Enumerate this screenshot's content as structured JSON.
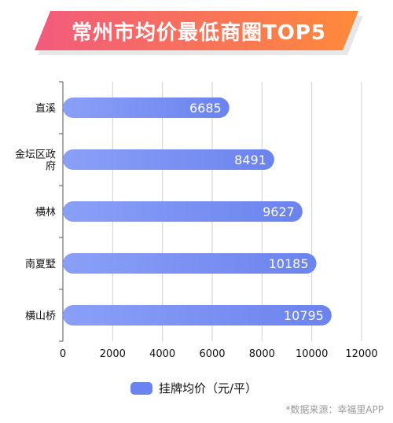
{
  "title": "常州市均价最低商圈TOP5",
  "colors": {
    "banner_left": "#f25a7b",
    "banner_right": "#ff8a3a",
    "banner_shadow": "#e7e7e7",
    "bar_left": "#8aa0f7",
    "bar_right": "#6b83ee",
    "grid": "#cfcfcf"
  },
  "chart_data": {
    "type": "bar",
    "orientation": "horizontal",
    "categories": [
      "直溪",
      "金坛区政府",
      "横林",
      "南夏墅",
      "横山桥"
    ],
    "category_display": [
      [
        "直溪"
      ],
      [
        "金坛区政",
        "府"
      ],
      [
        "横林"
      ],
      [
        "南夏墅"
      ],
      [
        "横山桥"
      ]
    ],
    "series": [
      {
        "name": "挂牌均价（元/平）",
        "values": [
          6685,
          8491,
          9627,
          10185,
          10795
        ]
      }
    ],
    "xlim": [
      0,
      12000
    ],
    "xticks": [
      0,
      2000,
      4000,
      6000,
      8000,
      10000,
      12000
    ],
    "xtick_labels": [
      "0",
      "2000",
      "4000",
      "6000",
      "8000",
      "10000",
      "12000"
    ],
    "grid": true,
    "legend_position": "bottom"
  },
  "source": "*数据来源：幸福里APP"
}
